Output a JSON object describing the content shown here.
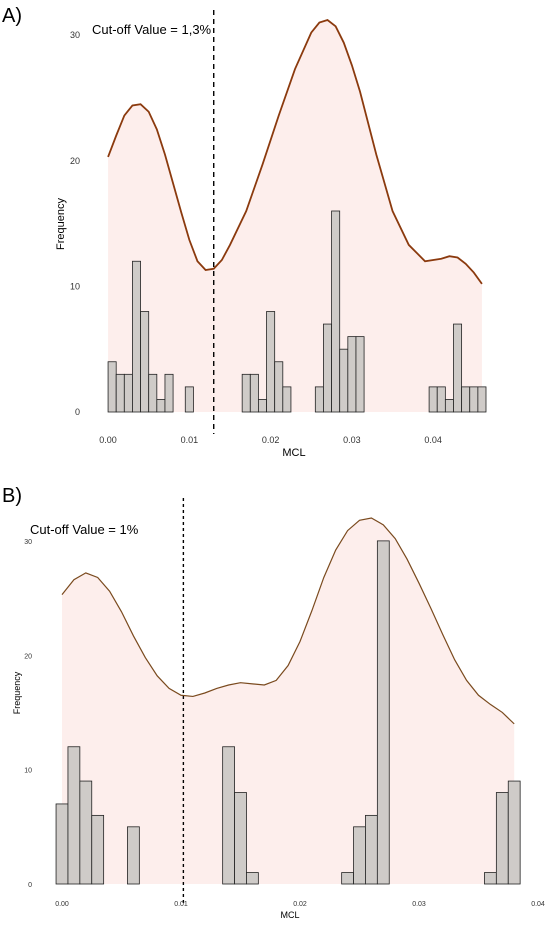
{
  "chart_data": [
    {
      "type": "bar",
      "panel_label": "A)",
      "annotation": "Cut-off Value = 1,3%",
      "cutoff": 0.013,
      "xlabel": "MCL",
      "ylabel": "Frequency",
      "xlim": [
        -0.0005,
        0.0465
      ],
      "ylim": [
        0,
        32
      ],
      "xticks": [
        0.0,
        0.01,
        0.02,
        0.03,
        0.04
      ],
      "xtick_labels": [
        "0.00",
        "0.01",
        "0.02",
        "0.03",
        "0.04"
      ],
      "yticks": [
        0,
        10,
        20,
        30
      ],
      "ytick_labels": [
        "0",
        "10",
        "20",
        "30"
      ],
      "bin_width": 0.001,
      "bins": [
        {
          "x": 0.0,
          "count": 4
        },
        {
          "x": 0.001,
          "count": 3
        },
        {
          "x": 0.002,
          "count": 3
        },
        {
          "x": 0.003,
          "count": 12
        },
        {
          "x": 0.004,
          "count": 8
        },
        {
          "x": 0.005,
          "count": 3
        },
        {
          "x": 0.006,
          "count": 1
        },
        {
          "x": 0.007,
          "count": 3
        },
        {
          "x": 0.0095,
          "count": 2
        },
        {
          "x": 0.0165,
          "count": 3
        },
        {
          "x": 0.0175,
          "count": 3
        },
        {
          "x": 0.0185,
          "count": 1
        },
        {
          "x": 0.0195,
          "count": 8
        },
        {
          "x": 0.0205,
          "count": 4
        },
        {
          "x": 0.0215,
          "count": 2
        },
        {
          "x": 0.0255,
          "count": 2
        },
        {
          "x": 0.0265,
          "count": 7
        },
        {
          "x": 0.0275,
          "count": 16
        },
        {
          "x": 0.0285,
          "count": 5
        },
        {
          "x": 0.0295,
          "count": 6
        },
        {
          "x": 0.0305,
          "count": 6
        },
        {
          "x": 0.0395,
          "count": 2
        },
        {
          "x": 0.0405,
          "count": 2
        },
        {
          "x": 0.0415,
          "count": 1
        },
        {
          "x": 0.0425,
          "count": 7
        },
        {
          "x": 0.0435,
          "count": 2
        },
        {
          "x": 0.0445,
          "count": 2
        },
        {
          "x": 0.0455,
          "count": 2
        }
      ],
      "density_curve": {
        "x": [
          0.0,
          0.001,
          0.002,
          0.003,
          0.004,
          0.005,
          0.006,
          0.007,
          0.008,
          0.009,
          0.01,
          0.011,
          0.012,
          0.013,
          0.014,
          0.015,
          0.017,
          0.019,
          0.021,
          0.023,
          0.025,
          0.026,
          0.027,
          0.028,
          0.029,
          0.03,
          0.031,
          0.033,
          0.035,
          0.037,
          0.039,
          0.041,
          0.042,
          0.043,
          0.044,
          0.045,
          0.046
        ],
        "y": [
          20.3,
          22.0,
          23.6,
          24.4,
          24.5,
          23.9,
          22.5,
          20.5,
          18.2,
          15.9,
          13.7,
          12.0,
          11.3,
          11.4,
          12.1,
          13.3,
          16.0,
          19.7,
          23.6,
          27.3,
          30.2,
          31.0,
          31.2,
          30.7,
          29.4,
          27.6,
          25.5,
          20.5,
          16.0,
          13.3,
          12.0,
          12.2,
          12.4,
          12.3,
          11.8,
          11.1,
          10.2
        ]
      },
      "fill_color": "#fdeeec",
      "curve_color": "#8b3a0e",
      "bar_color": "#cfcbc8"
    },
    {
      "type": "bar",
      "panel_label": "B)",
      "annotation": "Cut-off Value = 1%",
      "cutoff": 0.0102,
      "xlabel": "MCL",
      "ylabel": "Frequency",
      "xlim": [
        0.0,
        0.04
      ],
      "ylim": [
        0,
        32
      ],
      "xticks": [
        0.0,
        0.01,
        0.02,
        0.03,
        0.04
      ],
      "xtick_labels": [
        "0.00",
        "0.01",
        "0.02",
        "0.03",
        "0.04"
      ],
      "yticks": [
        0,
        10,
        20,
        30
      ],
      "ytick_labels": [
        "0",
        "10",
        "20",
        "30"
      ],
      "bin_width": 0.001,
      "bins": [
        {
          "x": -0.0005,
          "count": 7
        },
        {
          "x": 0.0005,
          "count": 12
        },
        {
          "x": 0.0015,
          "count": 9
        },
        {
          "x": 0.0025,
          "count": 6
        },
        {
          "x": 0.0055,
          "count": 5
        },
        {
          "x": 0.0135,
          "count": 12
        },
        {
          "x": 0.0145,
          "count": 8
        },
        {
          "x": 0.0155,
          "count": 1
        },
        {
          "x": 0.0235,
          "count": 1
        },
        {
          "x": 0.0245,
          "count": 5
        },
        {
          "x": 0.0255,
          "count": 6
        },
        {
          "x": 0.0265,
          "count": 30
        },
        {
          "x": 0.0355,
          "count": 1
        },
        {
          "x": 0.0365,
          "count": 8
        },
        {
          "x": 0.0375,
          "count": 9
        }
      ],
      "density_curve": {
        "x": [
          0.0,
          0.001,
          0.002,
          0.003,
          0.004,
          0.005,
          0.006,
          0.007,
          0.008,
          0.009,
          0.01,
          0.011,
          0.012,
          0.013,
          0.014,
          0.015,
          0.016,
          0.017,
          0.018,
          0.019,
          0.02,
          0.021,
          0.022,
          0.023,
          0.024,
          0.025,
          0.026,
          0.027,
          0.028,
          0.029,
          0.03,
          0.031,
          0.032,
          0.033,
          0.034,
          0.035,
          0.036,
          0.037,
          0.038
        ],
        "y": [
          25.3,
          26.6,
          27.2,
          26.8,
          25.6,
          23.8,
          21.7,
          19.8,
          18.2,
          17.1,
          16.5,
          16.4,
          16.7,
          17.1,
          17.4,
          17.6,
          17.5,
          17.4,
          17.8,
          19.1,
          21.2,
          23.9,
          26.8,
          29.2,
          30.9,
          31.8,
          32.0,
          31.4,
          30.2,
          28.4,
          26.3,
          24.1,
          21.8,
          19.6,
          17.8,
          16.5,
          15.7,
          15.0,
          14.0
        ]
      },
      "fill_color": "#fdeeec",
      "curve_color": "#7a4a1e",
      "bar_color": "#cfcbc8"
    }
  ]
}
